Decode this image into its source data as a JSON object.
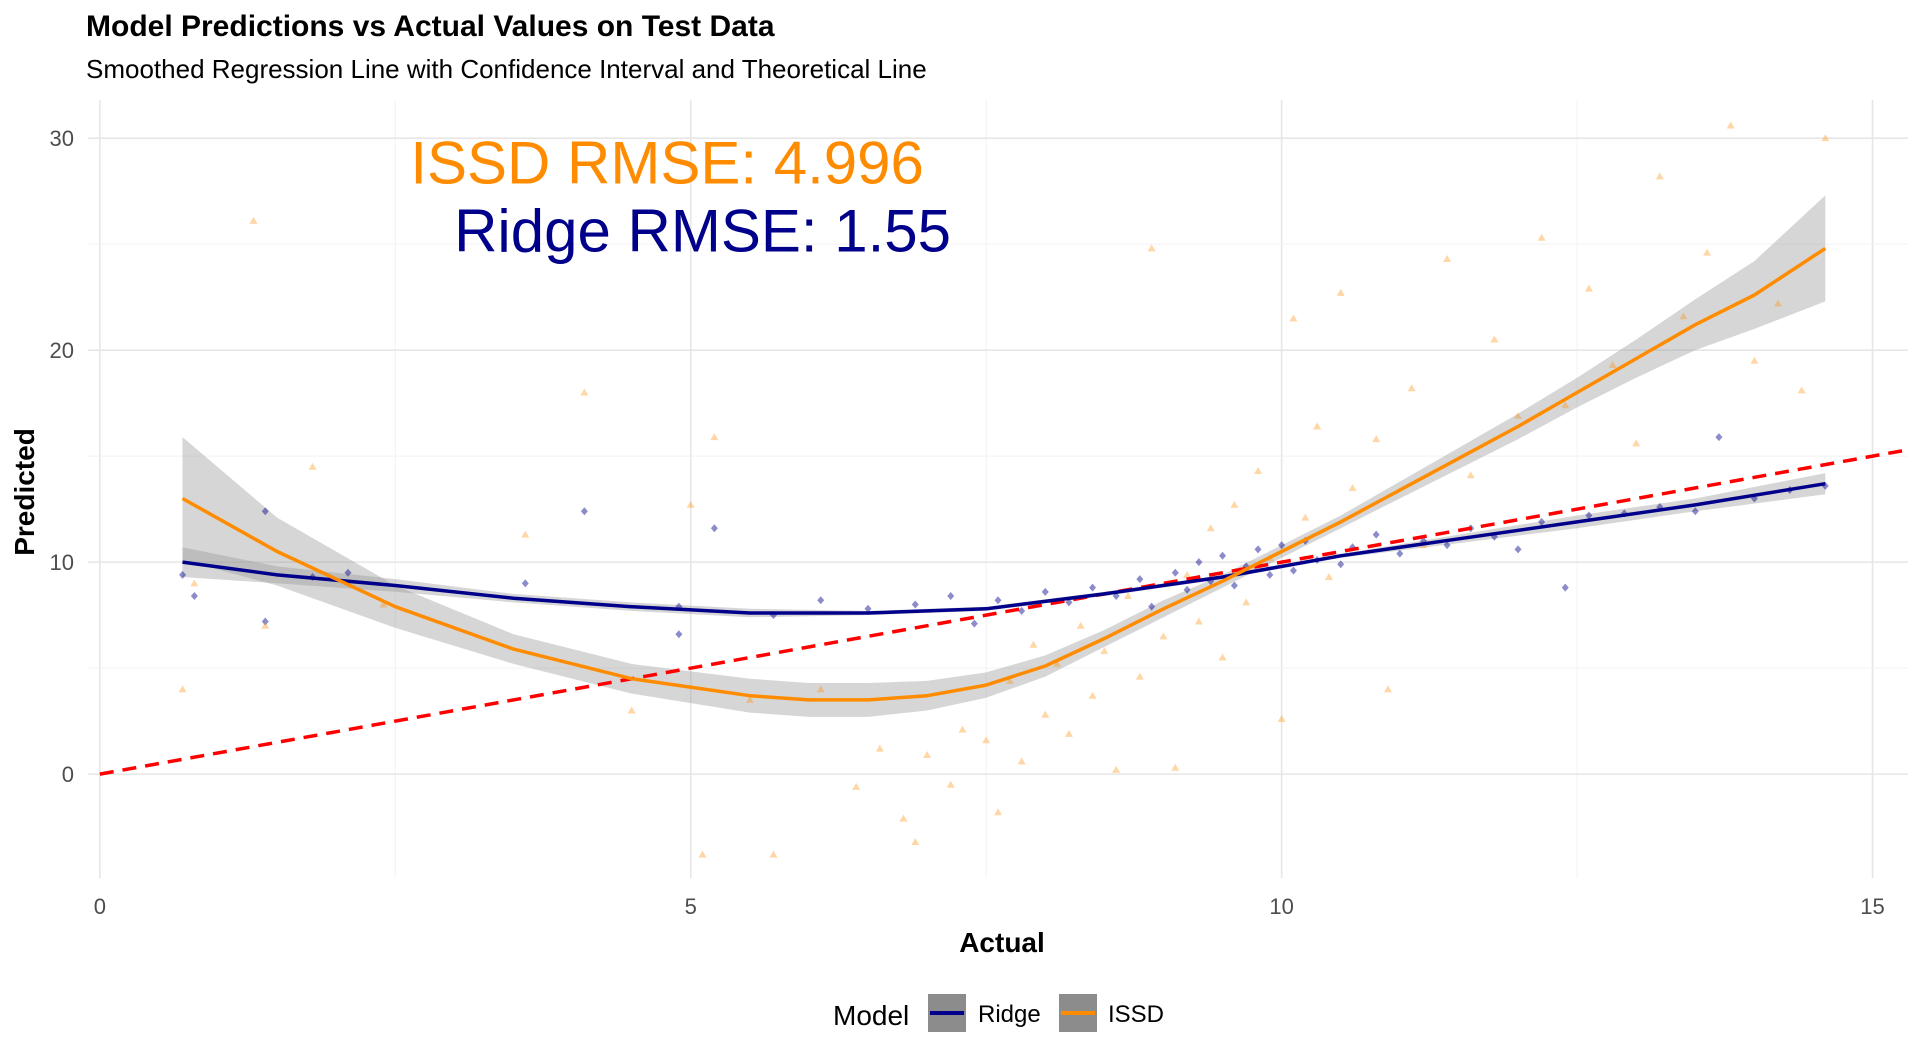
{
  "chart_data": {
    "type": "scatter",
    "title": "Model Predictions vs Actual Values on Test Data",
    "subtitle": "Smoothed Regression Line with Confidence Interval and Theoretical Line",
    "xlabel": "Actual",
    "ylabel": "Predicted",
    "xlim": [
      -0.1,
      15.3
    ],
    "ylim": [
      -4.9,
      31.8
    ],
    "x_ticks": [
      0,
      5,
      10,
      15
    ],
    "y_ticks": [
      0,
      10,
      20,
      30
    ],
    "x_tick_labels": [
      "0",
      "5",
      "10",
      "15"
    ],
    "y_tick_labels": [
      "0",
      "10",
      "20",
      "30"
    ],
    "grid": true,
    "legend": {
      "title": "Model",
      "placement": "bottom",
      "entries": [
        "Ridge",
        "ISSD"
      ]
    },
    "annotations": [
      {
        "text": "ISSD RMSE: 4.996",
        "x": 4.8,
        "y": 28.9,
        "color": "#FF8C00"
      },
      {
        "text": "Ridge RMSE: 1.55",
        "x": 5.1,
        "y": 25.7,
        "color": "#00008B"
      }
    ],
    "theoretical_line": {
      "name": "y = x",
      "x": [
        0,
        15.3
      ],
      "y": [
        0,
        15.3
      ],
      "color": "#FF0000",
      "dash": true
    },
    "series": [
      {
        "name": "Ridge",
        "color": "#00008B",
        "marker": "diamond",
        "smooth": {
          "x": [
            0.7,
            1.5,
            2.5,
            3.5,
            4.5,
            5.5,
            6.5,
            7.5,
            8.5,
            9.5,
            10.5,
            11.5,
            12.5,
            13.5,
            14.6
          ],
          "y": [
            10.0,
            9.4,
            8.9,
            8.3,
            7.9,
            7.6,
            7.6,
            7.8,
            8.5,
            9.3,
            10.3,
            11.1,
            11.9,
            12.7,
            13.7
          ],
          "ci_lower": [
            9.3,
            9.0,
            8.6,
            8.1,
            7.7,
            7.4,
            7.5,
            7.7,
            8.4,
            9.2,
            10.2,
            10.9,
            11.6,
            12.4,
            13.2
          ],
          "ci_upper": [
            10.7,
            9.8,
            9.2,
            8.5,
            8.1,
            7.8,
            7.7,
            7.9,
            8.6,
            9.4,
            10.4,
            11.3,
            12.2,
            13.0,
            14.2
          ]
        },
        "points": [
          [
            0.7,
            9.4
          ],
          [
            0.8,
            8.4
          ],
          [
            1.4,
            12.4
          ],
          [
            1.4,
            7.2
          ],
          [
            1.8,
            9.3
          ],
          [
            2.1,
            9.5
          ],
          [
            3.6,
            9.0
          ],
          [
            4.1,
            12.4
          ],
          [
            4.9,
            7.9
          ],
          [
            4.9,
            6.6
          ],
          [
            5.2,
            11.6
          ],
          [
            5.7,
            7.5
          ],
          [
            6.1,
            8.2
          ],
          [
            6.5,
            7.8
          ],
          [
            6.9,
            8.0
          ],
          [
            7.2,
            8.4
          ],
          [
            7.4,
            7.1
          ],
          [
            7.6,
            8.2
          ],
          [
            7.8,
            7.7
          ],
          [
            8.0,
            8.6
          ],
          [
            8.2,
            8.1
          ],
          [
            8.4,
            8.8
          ],
          [
            8.6,
            8.4
          ],
          [
            8.8,
            9.2
          ],
          [
            8.9,
            7.9
          ],
          [
            9.1,
            9.5
          ],
          [
            9.2,
            8.7
          ],
          [
            9.3,
            10.0
          ],
          [
            9.4,
            9.1
          ],
          [
            9.5,
            10.3
          ],
          [
            9.6,
            8.9
          ],
          [
            9.7,
            9.8
          ],
          [
            9.8,
            10.6
          ],
          [
            9.9,
            9.4
          ],
          [
            10.0,
            10.8
          ],
          [
            10.1,
            9.6
          ],
          [
            10.2,
            11.0
          ],
          [
            10.3,
            10.1
          ],
          [
            10.5,
            9.9
          ],
          [
            10.6,
            10.7
          ],
          [
            10.8,
            11.3
          ],
          [
            11.0,
            10.4
          ],
          [
            11.2,
            11.0
          ],
          [
            11.4,
            10.8
          ],
          [
            11.6,
            11.6
          ],
          [
            11.8,
            11.2
          ],
          [
            12.0,
            10.6
          ],
          [
            12.2,
            11.9
          ],
          [
            12.4,
            8.8
          ],
          [
            12.6,
            12.2
          ],
          [
            12.9,
            12.3
          ],
          [
            13.2,
            12.6
          ],
          [
            13.5,
            12.4
          ],
          [
            13.7,
            15.9
          ],
          [
            14.0,
            13.0
          ],
          [
            14.3,
            13.4
          ],
          [
            14.6,
            13.6
          ]
        ]
      },
      {
        "name": "ISSD",
        "color": "#FF8C00",
        "marker": "triangle",
        "smooth": {
          "x": [
            0.7,
            1.5,
            2.5,
            3.5,
            4.5,
            5.5,
            6.0,
            6.5,
            7.0,
            7.5,
            8.0,
            8.5,
            9.0,
            9.5,
            10.0,
            10.5,
            11.0,
            11.5,
            12.0,
            12.5,
            13.0,
            13.5,
            14.0,
            14.6
          ],
          "y": [
            13.0,
            10.5,
            7.9,
            5.9,
            4.5,
            3.7,
            3.5,
            3.5,
            3.7,
            4.2,
            5.1,
            6.4,
            7.8,
            9.1,
            10.5,
            11.9,
            13.4,
            14.9,
            16.4,
            18.0,
            19.6,
            21.2,
            22.6,
            24.8
          ],
          "ci_lower": [
            10.1,
            8.9,
            6.9,
            5.2,
            3.8,
            2.9,
            2.7,
            2.7,
            3.0,
            3.6,
            4.6,
            6.0,
            7.4,
            8.8,
            10.2,
            11.6,
            13.0,
            14.4,
            15.8,
            17.3,
            18.7,
            20.0,
            21.0,
            22.3
          ],
          "ci_upper": [
            15.9,
            12.1,
            8.9,
            6.6,
            5.2,
            4.5,
            4.3,
            4.3,
            4.4,
            4.8,
            5.6,
            6.8,
            8.2,
            9.4,
            10.8,
            12.2,
            13.8,
            15.4,
            17.0,
            18.7,
            20.5,
            22.4,
            24.2,
            27.3
          ]
        },
        "points": [
          [
            0.7,
            4.0
          ],
          [
            0.8,
            9.0
          ],
          [
            1.3,
            26.1
          ],
          [
            1.4,
            7.0
          ],
          [
            1.8,
            14.5
          ],
          [
            2.4,
            8.0
          ],
          [
            3.6,
            11.3
          ],
          [
            4.1,
            18.0
          ],
          [
            4.5,
            3.0
          ],
          [
            5.0,
            12.7
          ],
          [
            5.1,
            -3.8
          ],
          [
            5.2,
            15.9
          ],
          [
            5.5,
            3.5
          ],
          [
            5.7,
            -3.8
          ],
          [
            6.1,
            4.0
          ],
          [
            6.4,
            -0.6
          ],
          [
            6.6,
            1.2
          ],
          [
            6.8,
            -2.1
          ],
          [
            6.9,
            -3.2
          ],
          [
            7.0,
            0.9
          ],
          [
            7.2,
            -0.5
          ],
          [
            7.3,
            2.1
          ],
          [
            7.5,
            1.6
          ],
          [
            7.6,
            -1.8
          ],
          [
            7.7,
            4.4
          ],
          [
            7.8,
            0.6
          ],
          [
            7.9,
            6.1
          ],
          [
            8.0,
            2.8
          ],
          [
            8.1,
            5.2
          ],
          [
            8.2,
            1.9
          ],
          [
            8.3,
            7.0
          ],
          [
            8.4,
            3.7
          ],
          [
            8.5,
            5.8
          ],
          [
            8.6,
            0.2
          ],
          [
            8.7,
            8.4
          ],
          [
            8.8,
            4.6
          ],
          [
            8.9,
            24.8
          ],
          [
            9.0,
            6.5
          ],
          [
            9.1,
            0.3
          ],
          [
            9.2,
            9.4
          ],
          [
            9.3,
            7.2
          ],
          [
            9.4,
            11.6
          ],
          [
            9.5,
            5.5
          ],
          [
            9.6,
            12.7
          ],
          [
            9.7,
            8.1
          ],
          [
            9.8,
            14.3
          ],
          [
            9.9,
            10.2
          ],
          [
            10.0,
            2.6
          ],
          [
            10.1,
            21.5
          ],
          [
            10.2,
            12.1
          ],
          [
            10.3,
            16.4
          ],
          [
            10.4,
            9.3
          ],
          [
            10.5,
            22.7
          ],
          [
            10.6,
            13.5
          ],
          [
            10.8,
            15.8
          ],
          [
            10.9,
            4.0
          ],
          [
            11.1,
            18.2
          ],
          [
            11.2,
            10.8
          ],
          [
            11.4,
            24.3
          ],
          [
            11.6,
            14.1
          ],
          [
            11.8,
            20.5
          ],
          [
            12.0,
            16.9
          ],
          [
            12.2,
            25.3
          ],
          [
            12.4,
            17.4
          ],
          [
            12.6,
            22.9
          ],
          [
            12.8,
            19.3
          ],
          [
            13.0,
            15.6
          ],
          [
            13.2,
            28.2
          ],
          [
            13.4,
            21.6
          ],
          [
            13.6,
            24.6
          ],
          [
            13.8,
            30.6
          ],
          [
            14.0,
            19.5
          ],
          [
            14.2,
            22.2
          ],
          [
            14.4,
            18.1
          ],
          [
            14.6,
            30.0
          ]
        ]
      }
    ]
  }
}
